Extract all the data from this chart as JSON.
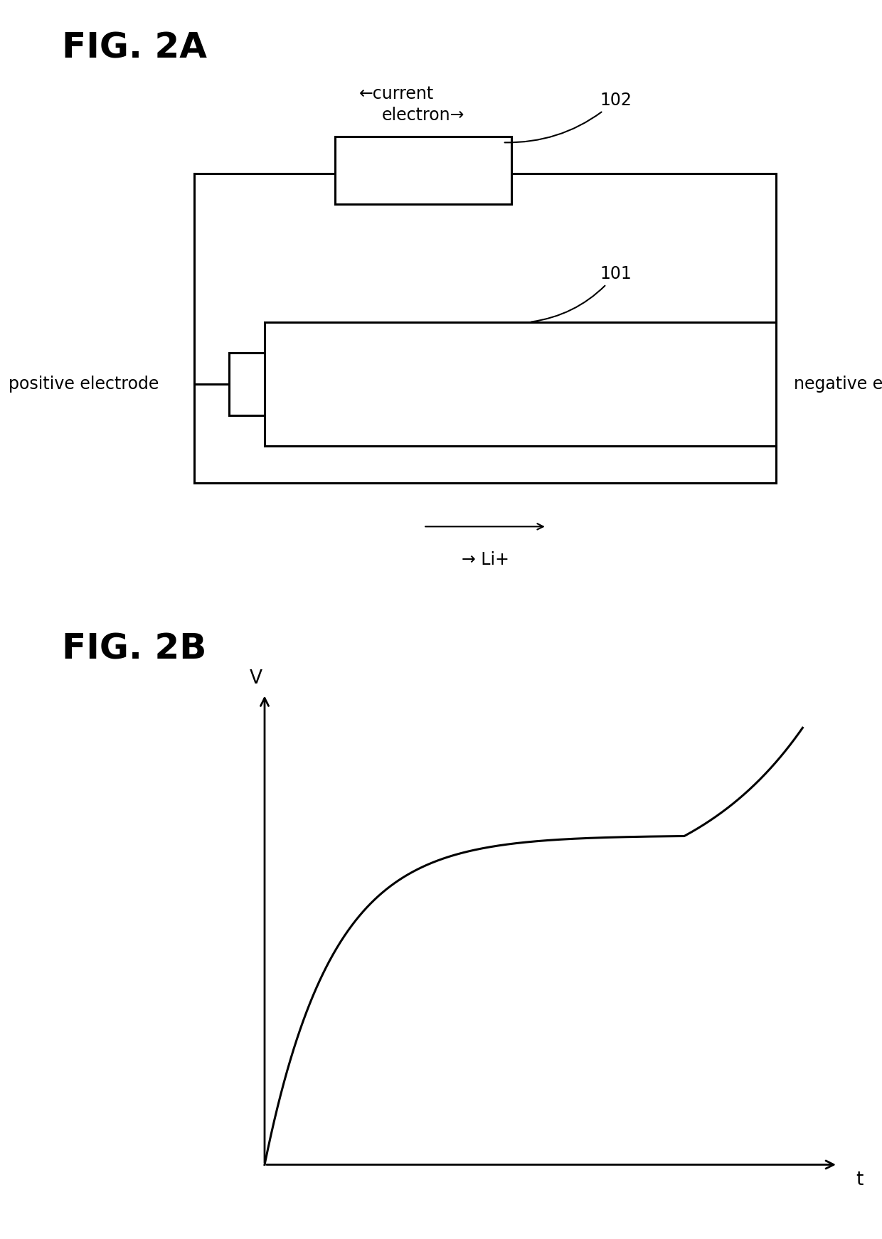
{
  "background_color": "#ffffff",
  "fig2a_label": "FIG. 2A",
  "fig2b_label": "FIG. 2B",
  "label_fontsize": 36,
  "label_fontweight": "bold",
  "text_fontsize": 17,
  "annotation_fontsize": 17,
  "circuit": {
    "current_text": "←current",
    "electron_text": "electron→",
    "label_102": "102",
    "label_101": "101",
    "positive_electrode": "positive electrode",
    "negative_electrode": "negative electrode",
    "li_text": "→ Li+"
  },
  "graph": {
    "xlabel": "t",
    "ylabel": "V"
  }
}
